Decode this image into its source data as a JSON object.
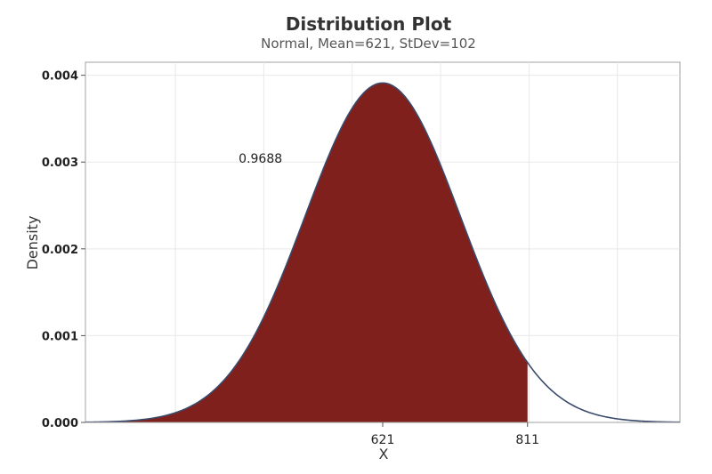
{
  "chart_data": {
    "type": "area",
    "title": "Distribution Plot",
    "subtitle": "Normal, Mean=621, StDev=102",
    "xlabel": "X",
    "ylabel": "Density",
    "distribution": {
      "name": "Normal",
      "mean": 621,
      "stdev": 102
    },
    "shaded_region": {
      "upper_bound": 811,
      "probability": 0.9688,
      "probability_label": "0.9688"
    },
    "xlim": [
      231,
      1011
    ],
    "ylim": [
      0,
      0.00415
    ],
    "x_tick_values": [
      621,
      811
    ],
    "x_tick_labels": [
      "621",
      "811"
    ],
    "y_tick_values": [
      0,
      0.001,
      0.002,
      0.003,
      0.004
    ],
    "y_tick_labels": [
      "0.000",
      "0.001",
      "0.002",
      "0.003",
      "0.004"
    ],
    "x_gridlines": [
      349,
      465,
      581,
      697,
      813,
      929
    ],
    "grid": true,
    "colors": {
      "fill": "#7f201c",
      "curve": "#3b4a6b",
      "grid": "#e8e8e8",
      "frame": "#a0a0a0",
      "text": "#333333"
    }
  }
}
